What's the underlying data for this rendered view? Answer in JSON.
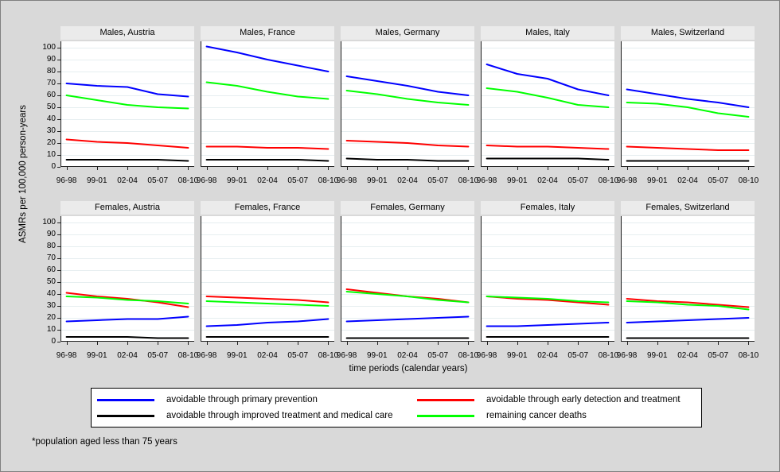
{
  "footnote": "*population aged less than 75 years",
  "chart_data": {
    "type": "line",
    "x": [
      "96-98",
      "99-01",
      "02-04",
      "05-07",
      "08-10"
    ],
    "xlabel": "time periods (calendar years)",
    "ylabel": "ASMRs per 100,000 person-years",
    "ylim": [
      0,
      105
    ],
    "yticks": [
      0,
      10,
      20,
      30,
      40,
      50,
      60,
      70,
      80,
      90,
      100
    ],
    "grid": true,
    "layout": {
      "rows": 2,
      "cols": 5,
      "legend_position": "bottom"
    },
    "colors": {
      "background": "#d9d9d9",
      "panel_title_bg": "#ebebeb",
      "plot_bg": "#ffffff",
      "gridline": "#e6eef0",
      "axis": "#222222"
    },
    "series_meta": [
      {
        "key": "prevention",
        "label": "avoidable through primary prevention",
        "color": "#0000ff"
      },
      {
        "key": "early_detection",
        "label": "avoidable through early detection and treatment",
        "color": "#ff0000"
      },
      {
        "key": "improved_treatment",
        "label": "avoidable through improved treatment and medical care",
        "color": "#000000"
      },
      {
        "key": "remaining",
        "label": "remaining cancer deaths",
        "color": "#00ff00"
      }
    ],
    "panels": [
      {
        "title": "Males, Austria",
        "series": {
          "prevention": [
            70,
            68,
            67,
            61,
            59
          ],
          "early_detection": [
            23,
            21,
            20,
            18,
            16
          ],
          "improved_treatment": [
            6,
            6,
            6,
            6,
            5
          ],
          "remaining": [
            60,
            56,
            52,
            50,
            49
          ]
        }
      },
      {
        "title": "Males, France",
        "series": {
          "prevention": [
            101,
            96,
            90,
            85,
            80
          ],
          "early_detection": [
            17,
            17,
            16,
            16,
            15
          ],
          "improved_treatment": [
            6,
            6,
            6,
            6,
            5
          ],
          "remaining": [
            71,
            68,
            63,
            59,
            57
          ]
        }
      },
      {
        "title": "Males, Germany",
        "series": {
          "prevention": [
            76,
            72,
            68,
            63,
            60
          ],
          "early_detection": [
            22,
            21,
            20,
            18,
            17
          ],
          "improved_treatment": [
            7,
            6,
            6,
            5,
            5
          ],
          "remaining": [
            64,
            61,
            57,
            54,
            52
          ]
        }
      },
      {
        "title": "Males, Italy",
        "series": {
          "prevention": [
            86,
            78,
            74,
            65,
            60
          ],
          "early_detection": [
            18,
            17,
            17,
            16,
            15
          ],
          "improved_treatment": [
            7,
            7,
            7,
            7,
            6
          ],
          "remaining": [
            66,
            63,
            58,
            52,
            50
          ]
        }
      },
      {
        "title": "Males, Switzerland",
        "series": {
          "prevention": [
            65,
            61,
            57,
            54,
            50
          ],
          "early_detection": [
            17,
            16,
            15,
            14,
            14
          ],
          "improved_treatment": [
            5,
            5,
            5,
            5,
            5
          ],
          "remaining": [
            54,
            53,
            50,
            45,
            42
          ]
        }
      },
      {
        "title": "Females, Austria",
        "series": {
          "prevention": [
            17,
            18,
            19,
            19,
            21
          ],
          "early_detection": [
            41,
            38,
            36,
            33,
            29
          ],
          "improved_treatment": [
            4,
            4,
            4,
            3,
            3
          ],
          "remaining": [
            38,
            37,
            35,
            34,
            32
          ]
        }
      },
      {
        "title": "Females, France",
        "series": {
          "prevention": [
            13,
            14,
            16,
            17,
            19
          ],
          "early_detection": [
            38,
            37,
            36,
            35,
            33
          ],
          "improved_treatment": [
            4,
            4,
            4,
            4,
            4
          ],
          "remaining": [
            34,
            33,
            32,
            31,
            30
          ]
        }
      },
      {
        "title": "Females, Germany",
        "series": {
          "prevention": [
            17,
            18,
            19,
            20,
            21
          ],
          "early_detection": [
            44,
            41,
            38,
            36,
            33
          ],
          "improved_treatment": [
            3,
            3,
            3,
            3,
            3
          ],
          "remaining": [
            42,
            40,
            38,
            35,
            33
          ]
        }
      },
      {
        "title": "Females, Italy",
        "series": {
          "prevention": [
            13,
            13,
            14,
            15,
            16
          ],
          "early_detection": [
            38,
            36,
            35,
            33,
            31
          ],
          "improved_treatment": [
            4,
            4,
            4,
            4,
            4
          ],
          "remaining": [
            38,
            37,
            36,
            34,
            33
          ]
        }
      },
      {
        "title": "Females, Switzerland",
        "series": {
          "prevention": [
            16,
            17,
            18,
            19,
            20
          ],
          "early_detection": [
            36,
            34,
            33,
            31,
            29
          ],
          "improved_treatment": [
            3,
            3,
            3,
            3,
            3
          ],
          "remaining": [
            34,
            33,
            31,
            30,
            27
          ]
        }
      }
    ]
  }
}
